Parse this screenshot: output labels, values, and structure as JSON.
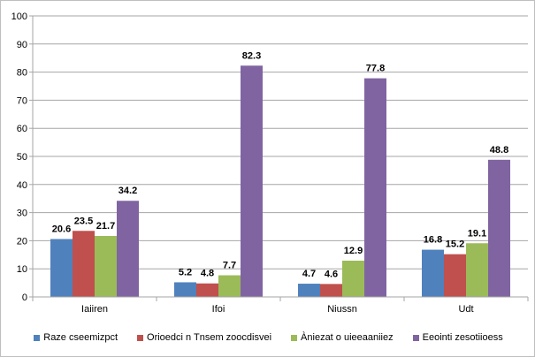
{
  "chart_data": {
    "type": "bar",
    "categories": [
      "Iaiiren",
      "Ifoi",
      "Niussn",
      "Udt"
    ],
    "series": [
      {
        "name": "Raze cseemizpct",
        "color": "#4f81bd",
        "values": [
          20.6,
          5.2,
          4.7,
          16.8
        ]
      },
      {
        "name": "Orioedci n Tnsem zoocdisvei",
        "color": "#c0504d",
        "values": [
          23.5,
          4.8,
          4.6,
          15.2
        ]
      },
      {
        "name": "Àniezat o uieeaaniiez",
        "color": "#9bbb59",
        "values": [
          21.7,
          7.7,
          12.9,
          19.1
        ]
      },
      {
        "name": "Eeointi zesotiioess",
        "color": "#8064a2",
        "values": [
          34.2,
          82.3,
          77.8,
          48.8
        ]
      }
    ],
    "ylim": [
      0,
      100
    ],
    "yticks": [
      0,
      10,
      20,
      30,
      40,
      50,
      60,
      70,
      80,
      90,
      100
    ],
    "grid": true,
    "legend_position": "bottom",
    "data_labels": true
  }
}
